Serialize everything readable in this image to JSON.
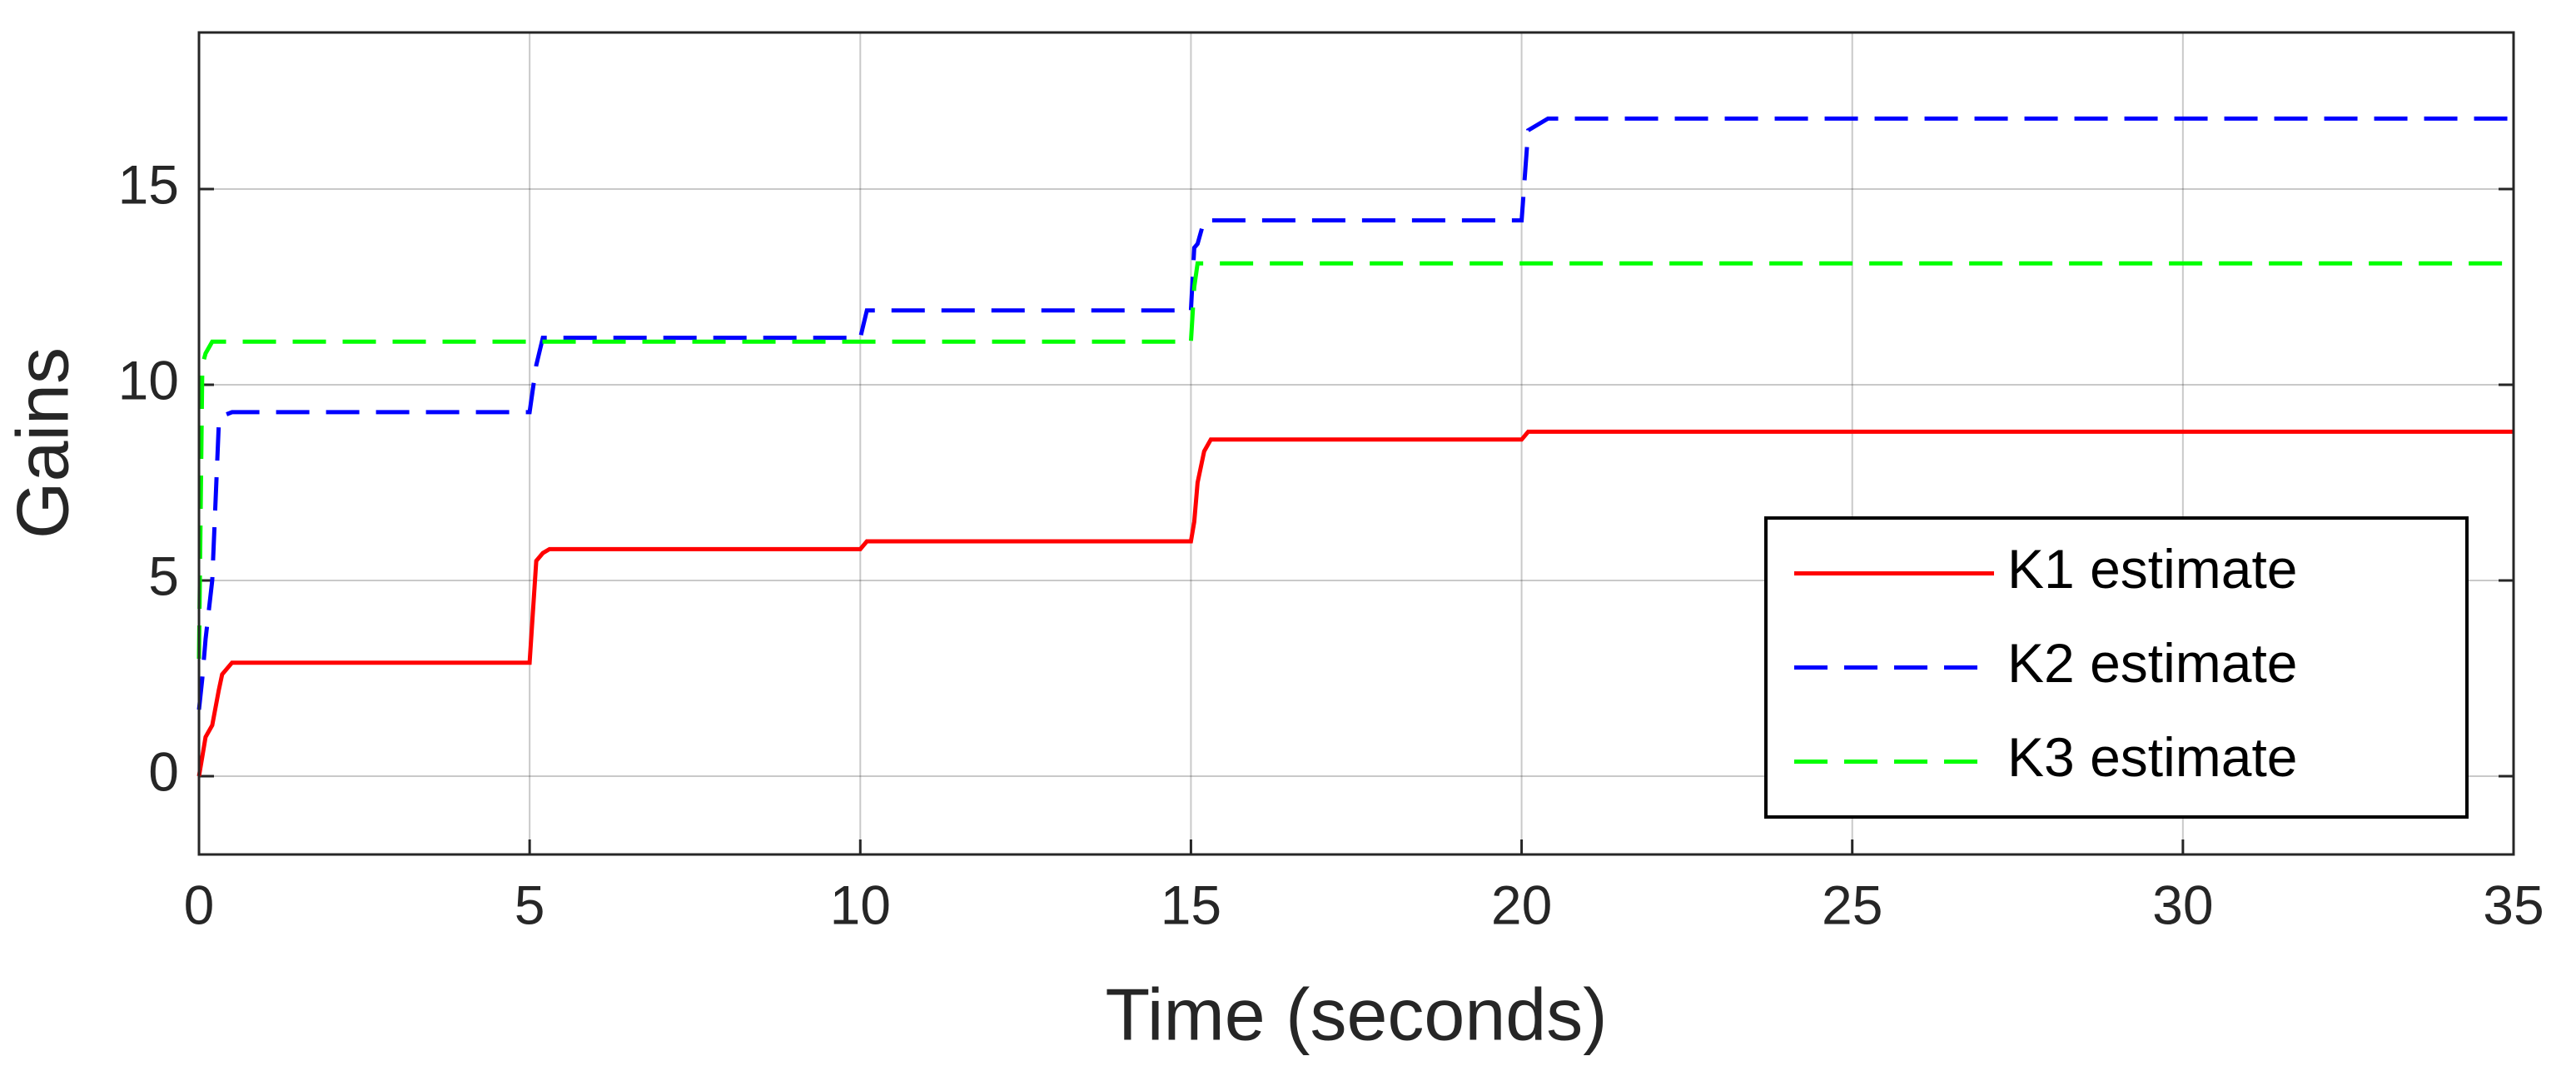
{
  "chart_data": {
    "type": "line",
    "xlabel": "Time (seconds)",
    "ylabel": "Gains",
    "x": [
      0,
      0.05,
      0.1,
      0.2,
      0.3,
      0.35,
      0.5,
      5,
      5.1,
      5.2,
      5.3,
      10,
      10.1,
      15,
      15.05,
      15.1,
      15.2,
      15.3,
      20,
      20.1,
      20.4,
      35
    ],
    "series": [
      {
        "name": "K1 estimate",
        "color": "#ff0000",
        "linestyle": "solid",
        "values": [
          0,
          0.5,
          1,
          1.3,
          2.2,
          2.6,
          2.9,
          2.9,
          5.5,
          5.7,
          5.8,
          5.8,
          6.0,
          6.0,
          6.5,
          7.5,
          8.3,
          8.6,
          8.6,
          8.8,
          8.8,
          8.8
        ]
      },
      {
        "name": "K2 estimate",
        "color": "#0000ff",
        "linestyle": "dashed",
        "values": [
          1.7,
          2.5,
          3.5,
          5,
          9,
          9.2,
          9.3,
          9.3,
          10.5,
          11.2,
          11.2,
          11.2,
          11.9,
          11.9,
          13.5,
          13.6,
          14.2,
          14.2,
          14.2,
          16.5,
          16.8,
          16.8
        ]
      },
      {
        "name": "K3 estimate",
        "color": "#00ff00",
        "linestyle": "dashed",
        "values": [
          3,
          10.5,
          10.8,
          11.1,
          11.1,
          11.1,
          11.1,
          11.1,
          11.1,
          11.1,
          11.1,
          11.1,
          11.1,
          11.1,
          12.5,
          13.1,
          13.1,
          13.1,
          13.1,
          13.1,
          13.1,
          13.1
        ]
      }
    ],
    "xlim": [
      0,
      35
    ],
    "xticks": [
      0,
      5,
      10,
      15,
      20,
      25,
      30,
      35
    ],
    "ylim": [
      -2,
      19
    ],
    "yticks": [
      0,
      5,
      10,
      15
    ],
    "grid": true,
    "legend": "lower right"
  }
}
